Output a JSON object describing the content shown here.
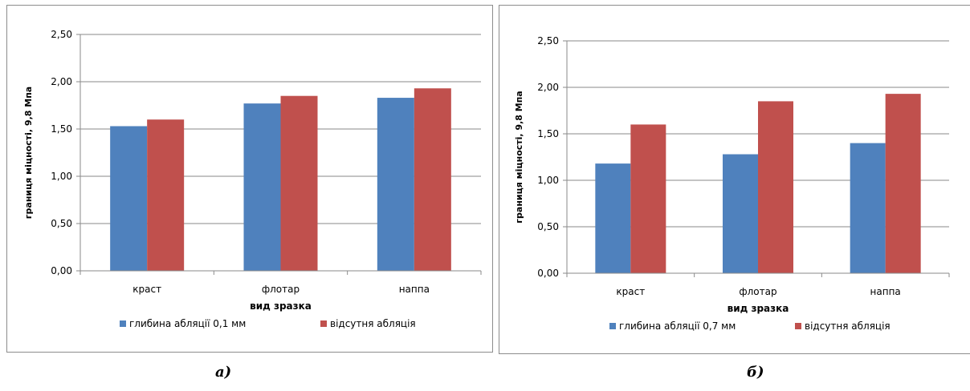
{
  "chart_data": [
    {
      "type": "bar",
      "categories": [
        "краст",
        "флотар",
        "наппа"
      ],
      "series": [
        {
          "name": "глибина абляції 0,1 мм",
          "values": [
            1.53,
            1.77,
            1.83
          ],
          "color": "#4f81bd"
        },
        {
          "name": "відсутня абляція",
          "values": [
            1.6,
            1.85,
            1.93
          ],
          "color": "#c0504d"
        }
      ],
      "xlabel": "вид зразка",
      "ylabel": "границя міцності, 9,8 Мпа",
      "ylim": [
        0,
        2.5
      ],
      "yticks": [
        "0,00",
        "0,50",
        "1,00",
        "1,50",
        "2,00",
        "2,50"
      ],
      "grid": true,
      "legend": "bottom"
    },
    {
      "type": "bar",
      "categories": [
        "краст",
        "флотар",
        "наппа"
      ],
      "series": [
        {
          "name": "глибина абляції 0,7 мм",
          "values": [
            1.18,
            1.28,
            1.4
          ],
          "color": "#4f81bd"
        },
        {
          "name": "відсутня абляція",
          "values": [
            1.6,
            1.85,
            1.93
          ],
          "color": "#c0504d"
        }
      ],
      "xlabel": "вид зразка",
      "ylabel": "границя міцності, 9,8 Мпа",
      "ylim": [
        0,
        2.5
      ],
      "yticks": [
        "0,00",
        "0,50",
        "1,00",
        "1,50",
        "2,00",
        "2,50"
      ],
      "grid": true,
      "legend": "bottom"
    }
  ],
  "captions": [
    "а)",
    "б)"
  ]
}
